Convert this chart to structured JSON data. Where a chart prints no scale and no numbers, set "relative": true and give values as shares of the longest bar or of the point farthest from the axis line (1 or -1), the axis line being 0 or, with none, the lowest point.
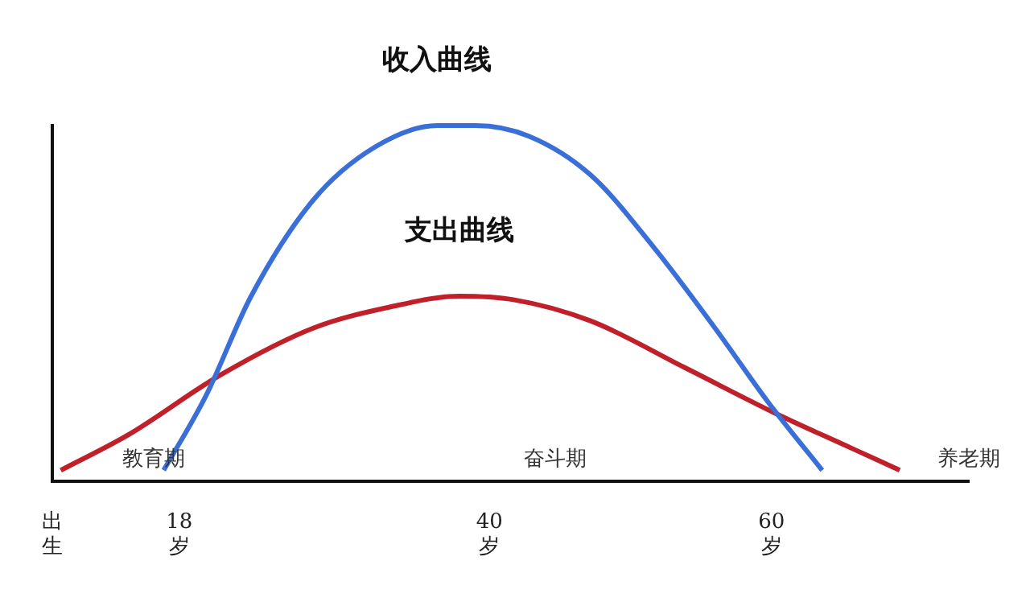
{
  "chart_data": {
    "type": "line",
    "relative": true,
    "xlim": [
      9,
      74
    ],
    "xticks": [
      {
        "value": 9,
        "label": "出生"
      },
      {
        "value": 18,
        "label": "18岁"
      },
      {
        "value": 40,
        "label": "40岁"
      },
      {
        "value": 60,
        "label": "60岁"
      }
    ],
    "series": [
      {
        "name": "收入曲线",
        "color": "#3a6fd8",
        "x": [
          16.9,
          19.9,
          23.1,
          27.5,
          31.9,
          36.3,
          39,
          42.8,
          47.2,
          51.6,
          56,
          59.8,
          63.6
        ],
        "values": [
          0.03,
          0.24,
          0.52,
          0.79,
          0.94,
          1.0,
          1.0,
          0.97,
          0.86,
          0.66,
          0.43,
          0.22,
          0.03
        ]
      },
      {
        "name": "支出曲线",
        "color": "#c0202a",
        "x": [
          9.6,
          14.4,
          21,
          27.5,
          33,
          37.9,
          41.7,
          47.2,
          53.8,
          60.3,
          65.8,
          69.1
        ],
        "values": [
          0.03,
          0.13,
          0.3,
          0.43,
          0.49,
          0.52,
          0.51,
          0.45,
          0.32,
          0.19,
          0.09,
          0.03
        ]
      }
    ],
    "annotations": [
      "教育期",
      "奋斗期",
      "养老期"
    ],
    "grid": false,
    "legend": false,
    "marker": "none",
    "line_style": "solid"
  }
}
